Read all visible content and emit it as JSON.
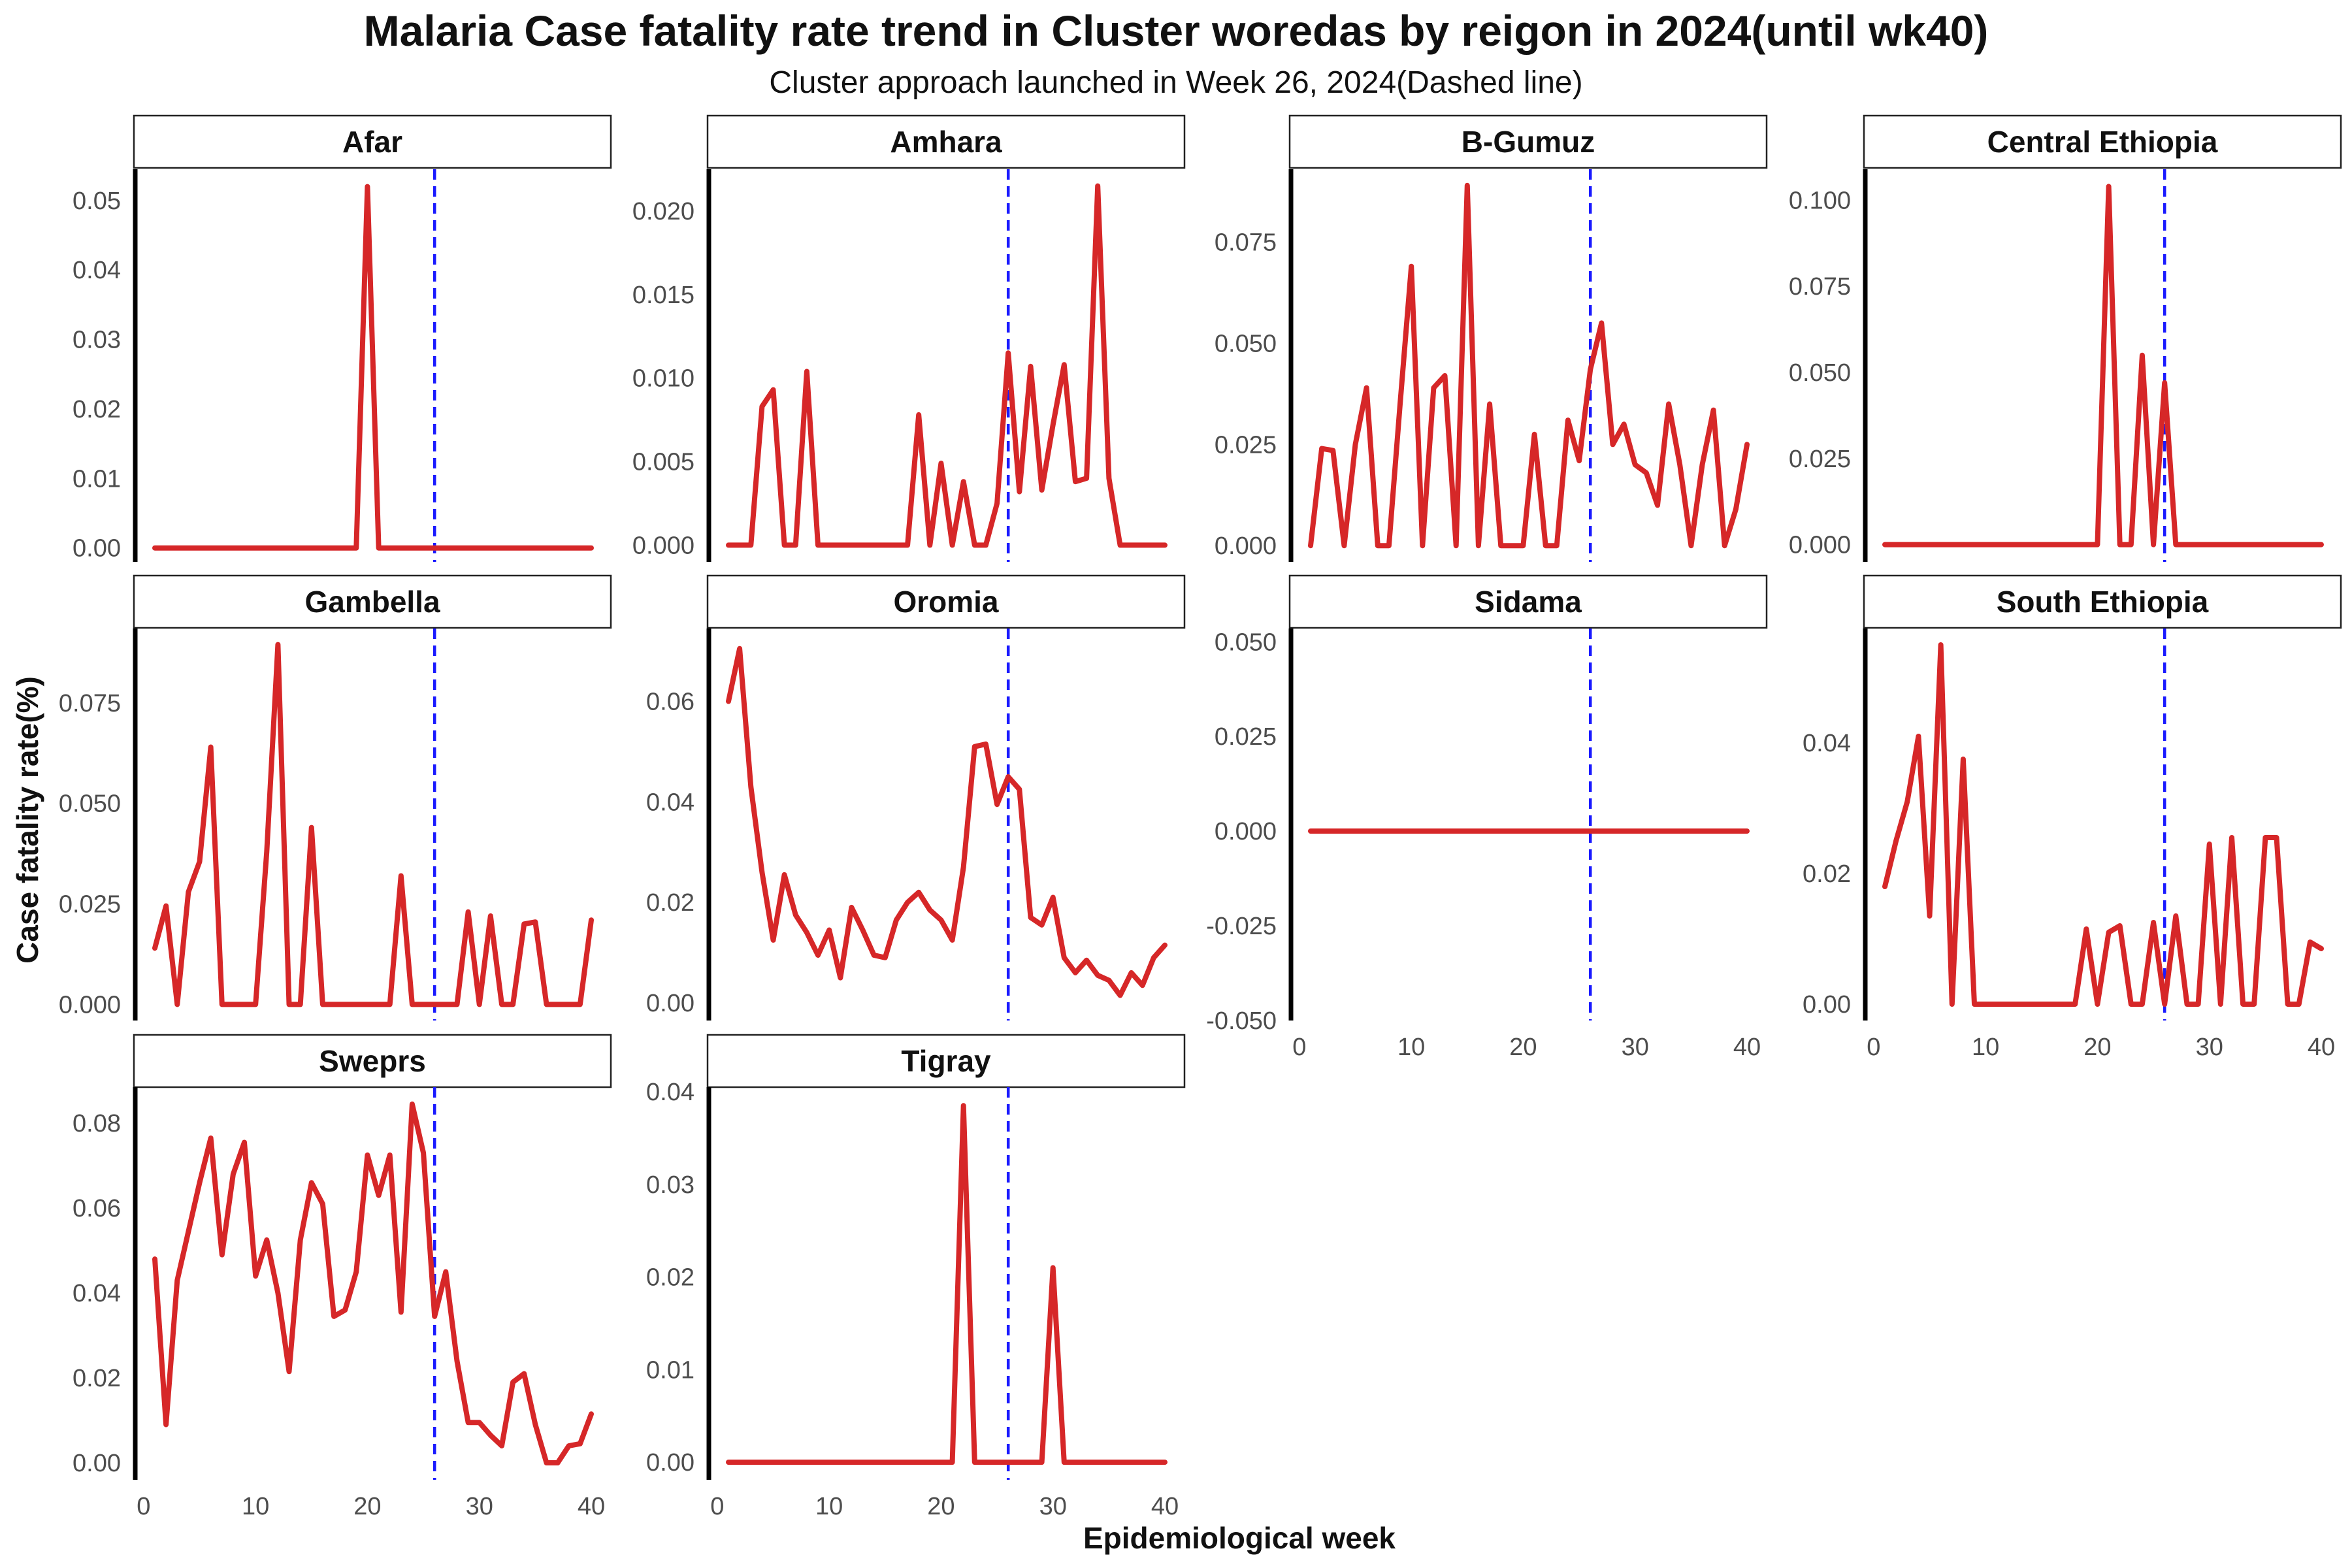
{
  "chart_data": {
    "type": "line",
    "title": "Malaria Case fatality rate trend in Cluster woredas by reigon in 2024(until wk40)",
    "subtitle": "Cluster approach launched in Week 26, 2024(Dashed line)",
    "xlabel": "Epidemiological week",
    "ylabel": "Case fatality rate(%)",
    "x_ticks": [
      0,
      10,
      20,
      30,
      40
    ],
    "xlim": [
      0,
      41
    ],
    "vline": 26,
    "colors": {
      "line": "#d62728",
      "vline": "#1a1aff"
    },
    "panels": [
      {
        "name": "Afar",
        "ylim": [
          -0.002,
          0.0545
        ],
        "yticks": [
          "0.00",
          "0.01",
          "0.02",
          "0.03",
          "0.04",
          "0.05"
        ],
        "ytick_values": [
          0,
          0.01,
          0.02,
          0.03,
          0.04,
          0.05
        ],
        "values": [
          0,
          0,
          0,
          0,
          0,
          0,
          0,
          0,
          0,
          0,
          0,
          0,
          0,
          0,
          0,
          0,
          0,
          0,
          0,
          0.052,
          0,
          0,
          0,
          0,
          0,
          0,
          0,
          0,
          0,
          0,
          0,
          0,
          0,
          0,
          0,
          0,
          0,
          0,
          0,
          0
        ]
      },
      {
        "name": "Amhara",
        "ylim": [
          -0.001,
          0.0225
        ],
        "yticks": [
          "0.000",
          "0.005",
          "0.010",
          "0.015",
          "0.020"
        ],
        "ytick_values": [
          0,
          0.005,
          0.01,
          0.015,
          0.02
        ],
        "values": [
          0,
          0,
          0,
          0.0083,
          0.0093,
          0,
          0,
          0.0104,
          0,
          0,
          0,
          0,
          0,
          0,
          0,
          0,
          0,
          0.0078,
          0,
          0.0049,
          0,
          0.0038,
          0,
          0,
          0.0025,
          0.0115,
          0.0032,
          0.0107,
          0.0033,
          0.0072,
          0.0108,
          0.0038,
          0.004,
          0.0215,
          0.004,
          0,
          0,
          0,
          0,
          0
        ]
      },
      {
        "name": "B-Gumuz",
        "ylim": [
          -0.004,
          0.093
        ],
        "yticks": [
          "0.000",
          "0.025",
          "0.050",
          "0.075"
        ],
        "ytick_values": [
          0,
          0.025,
          0.05,
          0.075
        ],
        "values": [
          0,
          0.024,
          0.0235,
          0,
          0.025,
          0.039,
          0,
          0,
          0.035,
          0.069,
          0,
          0.039,
          0.042,
          0,
          0.089,
          0,
          0.035,
          0,
          0,
          0,
          0.0275,
          0,
          0,
          0.031,
          0.021,
          0.0435,
          0.055,
          0.025,
          0.03,
          0.02,
          0.018,
          0.01,
          0.035,
          0.02,
          0,
          0.02,
          0.0335,
          0,
          0.009,
          0.025
        ]
      },
      {
        "name": "Central Ethiopia",
        "ylim": [
          -0.005,
          0.109
        ],
        "yticks": [
          "0.000",
          "0.025",
          "0.050",
          "0.075",
          "0.100"
        ],
        "ytick_values": [
          0,
          0.025,
          0.05,
          0.075,
          0.1
        ],
        "values": [
          0,
          0,
          0,
          0,
          0,
          0,
          0,
          0,
          0,
          0,
          0,
          0,
          0,
          0,
          0,
          0,
          0,
          0,
          0,
          0,
          0.104,
          0,
          0,
          0.055,
          0,
          0.047,
          0,
          0,
          0,
          0,
          0,
          0,
          0,
          0,
          0,
          0,
          0,
          0,
          0,
          0
        ]
      },
      {
        "name": "Gambella",
        "ylim": [
          -0.004,
          0.0935
        ],
        "yticks": [
          "0.000",
          "0.025",
          "0.050",
          "0.075"
        ],
        "ytick_values": [
          0,
          0.025,
          0.05,
          0.075
        ],
        "values": [
          0.014,
          0.0245,
          0,
          0.028,
          0.0355,
          0.064,
          0,
          0,
          0,
          0,
          0.038,
          0.0895,
          0,
          0,
          0.044,
          0,
          0,
          0,
          0,
          0,
          0,
          0,
          0.032,
          0,
          0,
          0,
          0,
          0,
          0.023,
          0,
          0.022,
          0,
          0,
          0.02,
          0.0205,
          0,
          0,
          0,
          0,
          0.021
        ]
      },
      {
        "name": "Oromia",
        "ylim": [
          -0.0035,
          0.0745
        ],
        "yticks": [
          "0.00",
          "0.02",
          "0.04",
          "0.06"
        ],
        "ytick_values": [
          0,
          0.02,
          0.04,
          0.06
        ],
        "values": [
          0.06,
          0.0705,
          0.043,
          0.026,
          0.0125,
          0.0255,
          0.0175,
          0.014,
          0.0095,
          0.0145,
          0.005,
          0.019,
          0.0145,
          0.0095,
          0.009,
          0.0165,
          0.02,
          0.022,
          0.0185,
          0.0165,
          0.0125,
          0.027,
          0.051,
          0.0515,
          0.0395,
          0.045,
          0.0425,
          0.017,
          0.0155,
          0.021,
          0.009,
          0.006,
          0.0085,
          0.0055,
          0.0045,
          0.0015,
          0.006,
          0.0035,
          0.009,
          0.0115
        ]
      },
      {
        "name": "Sidama",
        "ylim": [
          -0.05,
          0.0535
        ],
        "yticks": [
          "-0.050",
          "-0.025",
          "0.000",
          "0.025",
          "0.050"
        ],
        "ytick_values": [
          -0.05,
          -0.025,
          0,
          0.025,
          0.05
        ],
        "values": [
          0,
          0,
          0,
          0,
          0,
          0,
          0,
          0,
          0,
          0,
          0,
          0,
          0,
          0,
          0,
          0,
          0,
          0,
          0,
          0,
          0,
          0,
          0,
          0,
          0,
          0,
          0,
          0,
          0,
          0,
          0,
          0,
          0,
          0,
          0,
          0,
          0,
          0,
          0,
          0
        ]
      },
      {
        "name": "South Ethiopia",
        "ylim": [
          -0.0025,
          0.0575
        ],
        "yticks": [
          "0.00",
          "0.02",
          "0.04"
        ],
        "ytick_values": [
          0,
          0.02,
          0.04
        ],
        "values": [
          0.018,
          0.025,
          0.031,
          0.041,
          0.0135,
          0.055,
          0,
          0.0375,
          0,
          0,
          0,
          0,
          0,
          0,
          0,
          0,
          0,
          0,
          0.0115,
          0,
          0.011,
          0.012,
          0,
          0,
          0.0125,
          0,
          0.0135,
          0,
          0,
          0.0245,
          0,
          0.0255,
          0,
          0,
          0.0255,
          0.0255,
          0,
          0,
          0.0095,
          0.0085
        ]
      },
      {
        "name": "Sweprs",
        "ylim": [
          -0.004,
          0.0885
        ],
        "yticks": [
          "0.00",
          "0.02",
          "0.04",
          "0.06",
          "0.08"
        ],
        "ytick_values": [
          0,
          0.02,
          0.04,
          0.06,
          0.08
        ],
        "values": [
          0.048,
          0.009,
          0.043,
          0.0545,
          0.066,
          0.0765,
          0.049,
          0.068,
          0.0755,
          0.044,
          0.0525,
          0.04,
          0.0215,
          0.0525,
          0.066,
          0.061,
          0.0345,
          0.036,
          0.045,
          0.0725,
          0.063,
          0.0725,
          0.0355,
          0.0845,
          0.073,
          0.0345,
          0.045,
          0.024,
          0.0095,
          0.0095,
          0.0065,
          0.004,
          0.019,
          0.021,
          0.009,
          0,
          0,
          0.004,
          0.0045,
          0.0115
        ]
      },
      {
        "name": "Tigray",
        "ylim": [
          -0.0019,
          0.0405
        ],
        "yticks": [
          "0.00",
          "0.01",
          "0.02",
          "0.03",
          "0.04"
        ],
        "ytick_values": [
          0,
          0.01,
          0.02,
          0.03,
          0.04
        ],
        "values": [
          0,
          0,
          0,
          0,
          0,
          0,
          0,
          0,
          0,
          0,
          0,
          0,
          0,
          0,
          0,
          0,
          0,
          0,
          0,
          0,
          0,
          0.0385,
          0,
          0,
          0,
          0,
          0,
          0,
          0,
          0.021,
          0,
          0,
          0,
          0,
          0,
          0,
          0,
          0,
          0,
          0
        ]
      }
    ]
  }
}
